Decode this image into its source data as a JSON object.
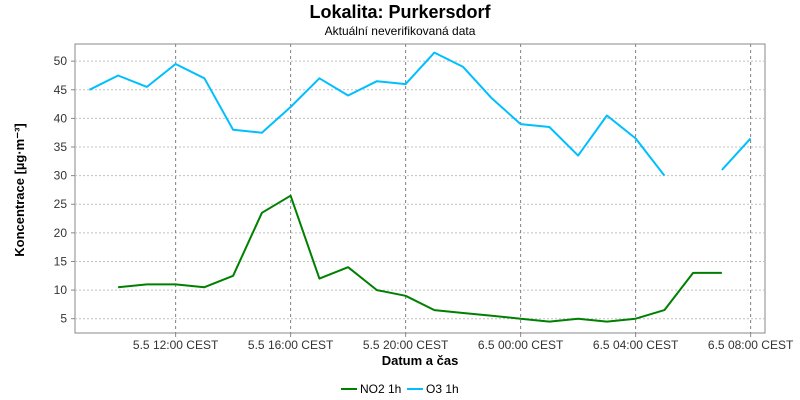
{
  "chart_data": {
    "type": "line",
    "title": "Lokalita: Purkersdorf",
    "subtitle": "Aktuální neverifikovaná data",
    "xlabel": "Datum a čas",
    "ylabel": "Koncentrace [µg·m⁻³]",
    "ylim": [
      2.5,
      53
    ],
    "yticks": [
      5,
      10,
      15,
      20,
      25,
      30,
      35,
      40,
      45,
      50
    ],
    "x_hours": [
      9,
      10,
      11,
      12,
      13,
      14,
      15,
      16,
      17,
      18,
      19,
      20,
      21,
      22,
      23,
      24,
      25,
      26,
      27,
      28,
      29,
      30,
      31,
      32
    ],
    "xlim_hours": [
      8.5,
      32.5
    ],
    "xticks": [
      {
        "hour": 12,
        "label": "5.5 12:00 CEST"
      },
      {
        "hour": 16,
        "label": "5.5 16:00 CEST"
      },
      {
        "hour": 20,
        "label": "5.5 20:00 CEST"
      },
      {
        "hour": 24,
        "label": "6.5 00:00 CEST"
      },
      {
        "hour": 28,
        "label": "6.5 04:00 CEST"
      },
      {
        "hour": 32,
        "label": "6.5 08:00 CEST"
      }
    ],
    "grid": true,
    "legend_position": "bottom",
    "series": [
      {
        "name": "NO2 1h",
        "color": "#008000",
        "values": [
          null,
          10.5,
          11,
          11,
          10.5,
          12.5,
          23.5,
          26.5,
          12,
          14,
          10,
          9,
          6.5,
          6,
          5.5,
          5,
          4.5,
          5,
          4.5,
          5,
          6.5,
          13,
          13,
          null
        ]
      },
      {
        "name": "O3 1h",
        "color": "#00bfff",
        "values": [
          45,
          47.5,
          45.5,
          49.5,
          47,
          38,
          37.5,
          42,
          47,
          44,
          46.5,
          46,
          51.5,
          49,
          43.5,
          39,
          38.5,
          33.5,
          40.5,
          36.5,
          30,
          null,
          31,
          36.5
        ]
      }
    ]
  }
}
